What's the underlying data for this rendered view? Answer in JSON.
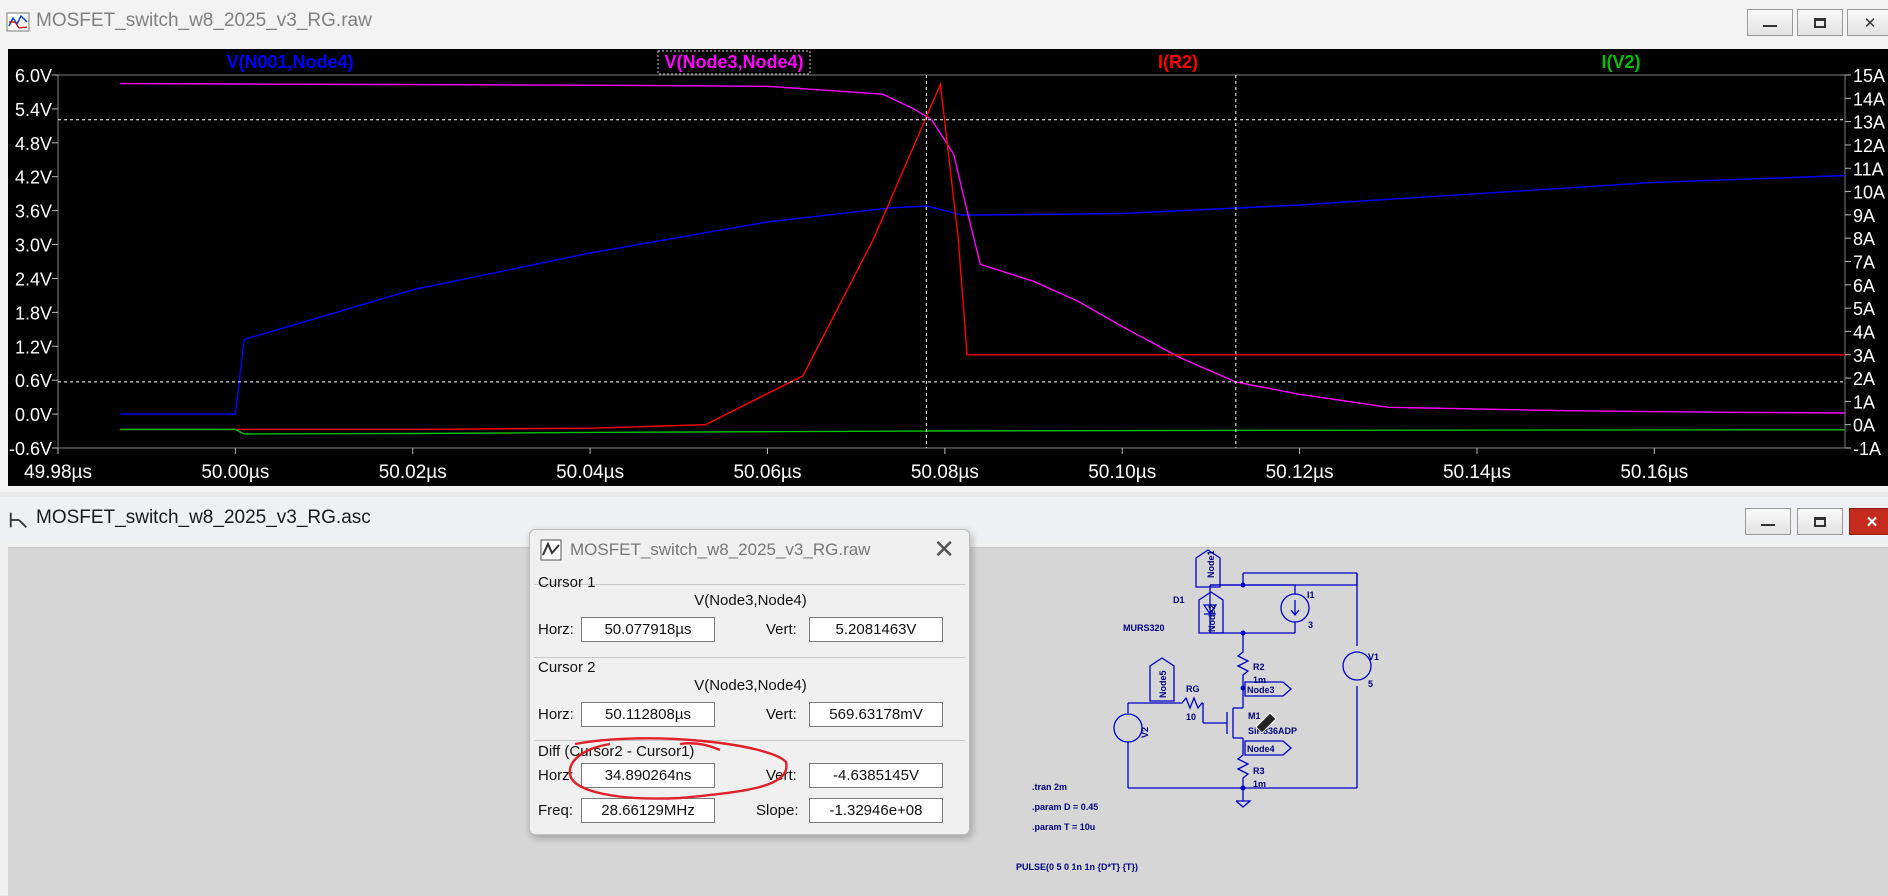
{
  "plot_window": {
    "title": "MOSFET_switch_w8_2025_v3_RG.raw",
    "buttons": {
      "minimize": "—",
      "maximize": "☐",
      "close": "✕"
    }
  },
  "chart_data": {
    "type": "line",
    "traces": [
      {
        "name": "V(N001,Node4)",
        "color": "#0000ff",
        "axis": "left"
      },
      {
        "name": "V(Node3,Node4)",
        "color": "#ff00ff",
        "axis": "left",
        "selected": true
      },
      {
        "name": "I(R2)",
        "color": "#ff0000",
        "axis": "right"
      },
      {
        "name": "I(V2)",
        "color": "#00c000",
        "axis": "right"
      }
    ],
    "x_unit": "µs",
    "xlim": [
      49.98,
      50.1815
    ],
    "left_ylim": [
      -0.6,
      6.0
    ],
    "right_ylim": [
      -1,
      15
    ],
    "x_ticks": [
      "49.98µs",
      "50.00µs",
      "50.02µs",
      "50.04µs",
      "50.06µs",
      "50.08µs",
      "50.10µs",
      "50.12µs",
      "50.14µs",
      "50.16µs"
    ],
    "x_tick_values": [
      49.98,
      50.0,
      50.02,
      50.04,
      50.06,
      50.08,
      50.1,
      50.12,
      50.14,
      50.16
    ],
    "left_ticks": [
      "6.0V",
      "5.4V",
      "4.8V",
      "4.2V",
      "3.6V",
      "3.0V",
      "2.4V",
      "1.8V",
      "1.2V",
      "0.6V",
      "0.0V",
      "-0.6V"
    ],
    "left_tick_values": [
      6.0,
      5.4,
      4.8,
      4.2,
      3.6,
      3.0,
      2.4,
      1.8,
      1.2,
      0.6,
      0.0,
      -0.6
    ],
    "right_ticks": [
      "15A",
      "14A",
      "13A",
      "12A",
      "11A",
      "10A",
      "9A",
      "8A",
      "7A",
      "6A",
      "5A",
      "4A",
      "3A",
      "2A",
      "1A",
      "0A",
      "-1A"
    ],
    "right_tick_values": [
      15,
      14,
      13,
      12,
      11,
      10,
      9,
      8,
      7,
      6,
      5,
      4,
      3,
      2,
      1,
      0,
      -1
    ],
    "series": [
      {
        "name": "V(N001,Node4)",
        "axis": "left",
        "color": "#0000ff",
        "x": [
          49.987,
          49.99,
          50.0,
          50.001,
          50.02,
          50.04,
          50.06,
          50.074,
          50.078,
          50.082,
          50.1,
          50.12,
          50.14,
          50.16,
          50.1815
        ],
        "y": [
          0.0,
          0.0,
          0.0,
          1.32,
          2.2,
          2.85,
          3.4,
          3.65,
          3.68,
          3.52,
          3.55,
          3.7,
          3.9,
          4.1,
          4.22
        ]
      },
      {
        "name": "V(Node3,Node4)",
        "axis": "left",
        "color": "#ff00ff",
        "x": [
          49.987,
          50.0,
          50.02,
          50.04,
          50.06,
          50.073,
          50.0765,
          50.0785,
          50.081,
          50.0825,
          50.084,
          50.09,
          50.095,
          50.1,
          50.1065,
          50.1128,
          50.12,
          50.13,
          50.15,
          50.17,
          50.1815
        ],
        "y": [
          5.85,
          5.84,
          5.83,
          5.82,
          5.8,
          5.66,
          5.4,
          5.21,
          4.6,
          3.6,
          2.65,
          2.35,
          2.0,
          1.55,
          1.0,
          0.57,
          0.35,
          0.12,
          0.06,
          0.03,
          0.02
        ]
      },
      {
        "name": "I(R2)",
        "axis": "right",
        "color": "#ff0000",
        "x": [
          49.987,
          50.0,
          50.02,
          50.04,
          50.053,
          50.064,
          50.072,
          50.0795,
          50.0815,
          50.0825,
          50.1,
          50.12,
          50.1815
        ],
        "y": [
          -0.2,
          -0.2,
          -0.2,
          -0.15,
          0.0,
          2.1,
          8.0,
          14.6,
          8.0,
          3.0,
          3.0,
          3.0,
          3.0
        ]
      },
      {
        "name": "I(V2)",
        "axis": "right",
        "color": "#00c000",
        "x": [
          49.987,
          50.0,
          50.001,
          50.02,
          50.04,
          50.08,
          50.12,
          50.1815
        ],
        "y": [
          -0.2,
          -0.2,
          -0.4,
          -0.38,
          -0.33,
          -0.27,
          -0.24,
          -0.22
        ]
      }
    ],
    "cursors": [
      {
        "x": 50.077918,
        "y": 5.2081463
      },
      {
        "x": 50.112808,
        "y": 0.56963178
      }
    ]
  },
  "asc_window": {
    "title": "MOSFET_switch_w8_2025_v3_RG.asc",
    "buttons": {
      "minimize": "—",
      "maximize": "☐",
      "close": "✕"
    }
  },
  "cursor_dialog": {
    "title": "MOSFET_switch_w8_2025_v3_RG.raw",
    "close": "✕",
    "cursor1": {
      "title": "Cursor 1",
      "trace": "V(Node3,Node4)",
      "horz_label": "Horz:",
      "horz": "50.077918µs",
      "vert_label": "Vert:",
      "vert": "5.2081463V"
    },
    "cursor2": {
      "title": "Cursor 2",
      "trace": "V(Node3,Node4)",
      "horz_label": "Horz:",
      "horz": "50.112808µs",
      "vert_label": "Vert:",
      "vert": "569.63178mV"
    },
    "diff": {
      "title": "Diff (Cursor2 - Cursor1)",
      "horz_label": "Horz:",
      "horz": "34.890264ns",
      "vert_label": "Vert:",
      "vert": "-4.6385145V",
      "freq_label": "Freq:",
      "freq": "28.66129MHz",
      "slope_label": "Slope:",
      "slope": "-1.32946e+08"
    }
  },
  "schematic": {
    "color": "#0000c8",
    "nodes": {
      "node1": "Node1",
      "node2": "Node2",
      "node3": "Node3",
      "node4": "Node4",
      "node5": "Node5"
    },
    "components": {
      "d1": {
        "ref": "D1",
        "value": "MURS320"
      },
      "i1": {
        "ref": "I1",
        "value": "3"
      },
      "r2": {
        "ref": "R2",
        "value": "1m"
      },
      "v1": {
        "ref": "V1",
        "value": "5"
      },
      "rg": {
        "ref": "RG",
        "value": "10"
      },
      "m1": {
        "ref": "M1",
        "value": "SiR836ADP"
      },
      "v2": {
        "ref": "V2"
      },
      "r3": {
        "ref": "R3",
        "value": "1m"
      }
    },
    "directives": [
      ".tran 2m",
      ".param D = 0.45",
      ".param T = 10u"
    ],
    "pulse": "PULSE(0 5 0 1n 1n {D*T} {T})"
  }
}
